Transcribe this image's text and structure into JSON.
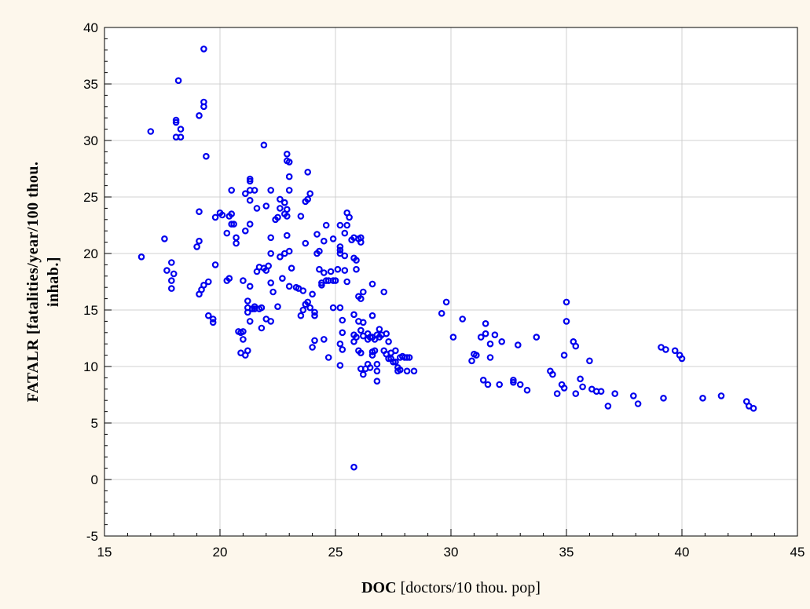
{
  "chart_data": {
    "type": "scatter",
    "title": "",
    "xlabel": {
      "bold": "DOC",
      "rest": " [doctors/10 thou. pop]"
    },
    "ylabel": {
      "line1": "FATALR [fatalities/year/100 thou.",
      "line2": "inhab.]"
    },
    "xlim": [
      15,
      45
    ],
    "ylim": [
      -5,
      40
    ],
    "xticks": [
      15,
      20,
      25,
      30,
      35,
      40,
      45
    ],
    "yticks": [
      -5,
      0,
      5,
      10,
      15,
      20,
      25,
      30,
      35,
      40
    ],
    "grid": true,
    "marker_color": "#0000ee",
    "points": [
      [
        16.6,
        19.7
      ],
      [
        17.0,
        30.8
      ],
      [
        17.6,
        21.3
      ],
      [
        17.7,
        18.5
      ],
      [
        17.9,
        19.2
      ],
      [
        17.9,
        17.6
      ],
      [
        17.9,
        16.9
      ],
      [
        18.0,
        18.2
      ],
      [
        18.1,
        30.3
      ],
      [
        18.1,
        31.6
      ],
      [
        18.1,
        31.8
      ],
      [
        18.2,
        35.3
      ],
      [
        18.3,
        30.3
      ],
      [
        18.3,
        31.0
      ],
      [
        19.1,
        32.2
      ],
      [
        19.3,
        33.0
      ],
      [
        19.3,
        33.4
      ],
      [
        19.3,
        38.1
      ],
      [
        19.4,
        28.6
      ],
      [
        19.0,
        20.6
      ],
      [
        19.1,
        16.4
      ],
      [
        19.2,
        16.8
      ],
      [
        19.1,
        21.1
      ],
      [
        19.1,
        23.7
      ],
      [
        19.3,
        17.2
      ],
      [
        19.5,
        17.5
      ],
      [
        19.5,
        14.5
      ],
      [
        19.7,
        14.2
      ],
      [
        19.7,
        13.9
      ],
      [
        19.8,
        19.0
      ],
      [
        19.8,
        23.2
      ],
      [
        20.0,
        23.6
      ],
      [
        20.1,
        23.4
      ],
      [
        20.3,
        21.8
      ],
      [
        20.3,
        17.6
      ],
      [
        20.4,
        17.8
      ],
      [
        20.4,
        23.3
      ],
      [
        20.5,
        22.6
      ],
      [
        20.5,
        23.5
      ],
      [
        20.5,
        25.6
      ],
      [
        20.6,
        22.6
      ],
      [
        20.7,
        21.4
      ],
      [
        20.7,
        20.9
      ],
      [
        20.8,
        13.1
      ],
      [
        20.9,
        11.2
      ],
      [
        20.9,
        13.0
      ],
      [
        21.0,
        17.6
      ],
      [
        21.0,
        12.4
      ],
      [
        21.0,
        13.1
      ],
      [
        21.1,
        11.0
      ],
      [
        21.1,
        25.3
      ],
      [
        21.1,
        22.0
      ],
      [
        21.2,
        11.4
      ],
      [
        21.2,
        15.8
      ],
      [
        21.2,
        15.2
      ],
      [
        21.2,
        14.8
      ],
      [
        21.3,
        26.4
      ],
      [
        21.3,
        26.6
      ],
      [
        21.3,
        25.6
      ],
      [
        21.3,
        24.7
      ],
      [
        21.3,
        22.6
      ],
      [
        21.3,
        14.0
      ],
      [
        21.3,
        17.1
      ],
      [
        21.4,
        15.1
      ],
      [
        21.5,
        25.6
      ],
      [
        21.5,
        15.3
      ],
      [
        21.5,
        15.1
      ],
      [
        21.6,
        24.0
      ],
      [
        21.6,
        18.4
      ],
      [
        21.7,
        18.8
      ],
      [
        21.7,
        15.1
      ],
      [
        21.8,
        13.4
      ],
      [
        21.8,
        15.2
      ],
      [
        21.9,
        29.6
      ],
      [
        21.9,
        18.7
      ],
      [
        22.0,
        24.2
      ],
      [
        22.0,
        18.5
      ],
      [
        22.0,
        14.2
      ],
      [
        22.1,
        18.9
      ],
      [
        22.2,
        25.6
      ],
      [
        22.2,
        21.4
      ],
      [
        22.2,
        20.0
      ],
      [
        22.2,
        14.0
      ],
      [
        22.2,
        17.4
      ],
      [
        22.3,
        16.6
      ],
      [
        22.4,
        23.0
      ],
      [
        22.5,
        23.2
      ],
      [
        22.5,
        15.3
      ],
      [
        22.6,
        24.0
      ],
      [
        22.6,
        24.8
      ],
      [
        22.6,
        19.7
      ],
      [
        22.7,
        17.8
      ],
      [
        22.8,
        24.5
      ],
      [
        22.8,
        23.5
      ],
      [
        22.8,
        20.0
      ],
      [
        22.9,
        23.9
      ],
      [
        22.9,
        28.8
      ],
      [
        22.9,
        28.2
      ],
      [
        22.9,
        23.3
      ],
      [
        22.9,
        21.6
      ],
      [
        23.0,
        28.1
      ],
      [
        23.0,
        26.8
      ],
      [
        23.0,
        25.6
      ],
      [
        23.0,
        20.2
      ],
      [
        23.0,
        17.1
      ],
      [
        23.1,
        18.7
      ],
      [
        23.3,
        17.0
      ],
      [
        23.4,
        16.9
      ],
      [
        23.5,
        14.5
      ],
      [
        23.5,
        23.3
      ],
      [
        23.6,
        16.7
      ],
      [
        23.6,
        15.0
      ],
      [
        23.7,
        15.5
      ],
      [
        23.7,
        20.9
      ],
      [
        23.7,
        24.6
      ],
      [
        23.8,
        27.2
      ],
      [
        23.8,
        24.8
      ],
      [
        23.8,
        15.7
      ],
      [
        23.9,
        25.3
      ],
      [
        23.9,
        15.2
      ],
      [
        24.0,
        16.4
      ],
      [
        24.0,
        11.7
      ],
      [
        24.1,
        14.8
      ],
      [
        24.1,
        14.5
      ],
      [
        24.1,
        12.3
      ],
      [
        24.2,
        20.0
      ],
      [
        24.2,
        21.7
      ],
      [
        24.3,
        20.2
      ],
      [
        24.3,
        18.6
      ],
      [
        24.4,
        17.2
      ],
      [
        24.4,
        17.4
      ],
      [
        24.5,
        12.4
      ],
      [
        24.5,
        18.3
      ],
      [
        24.5,
        21.1
      ],
      [
        24.6,
        17.6
      ],
      [
        24.6,
        22.5
      ],
      [
        24.7,
        17.6
      ],
      [
        24.7,
        10.8
      ],
      [
        24.8,
        18.4
      ],
      [
        24.9,
        15.2
      ],
      [
        24.9,
        21.3
      ],
      [
        24.9,
        17.6
      ],
      [
        25.0,
        17.6
      ],
      [
        25.1,
        18.6
      ],
      [
        25.2,
        22.5
      ],
      [
        25.2,
        20.3
      ],
      [
        25.2,
        20.0
      ],
      [
        25.2,
        20.6
      ],
      [
        25.2,
        15.2
      ],
      [
        25.2,
        12.0
      ],
      [
        25.2,
        10.1
      ],
      [
        25.3,
        11.5
      ],
      [
        25.3,
        14.1
      ],
      [
        25.3,
        13.0
      ],
      [
        25.4,
        21.8
      ],
      [
        25.4,
        19.8
      ],
      [
        25.4,
        18.5
      ],
      [
        25.5,
        22.5
      ],
      [
        25.5,
        23.6
      ],
      [
        25.5,
        17.5
      ],
      [
        25.6,
        23.2
      ],
      [
        25.7,
        21.2
      ],
      [
        25.8,
        21.4
      ],
      [
        25.8,
        19.6
      ],
      [
        25.8,
        14.6
      ],
      [
        25.8,
        12.2
      ],
      [
        25.8,
        12.8
      ],
      [
        25.8,
        1.1
      ],
      [
        25.9,
        19.4
      ],
      [
        25.9,
        18.6
      ],
      [
        25.9,
        12.6
      ],
      [
        26.0,
        14.0
      ],
      [
        26.0,
        11.4
      ],
      [
        26.0,
        16.2
      ],
      [
        26.0,
        21.3
      ],
      [
        26.1,
        21.4
      ],
      [
        26.1,
        21.0
      ],
      [
        26.1,
        16.0
      ],
      [
        26.1,
        13.2
      ],
      [
        26.1,
        11.2
      ],
      [
        26.1,
        9.8
      ],
      [
        26.2,
        16.6
      ],
      [
        26.2,
        13.9
      ],
      [
        26.2,
        12.7
      ],
      [
        26.2,
        9.3
      ],
      [
        26.3,
        9.8
      ],
      [
        26.4,
        12.4
      ],
      [
        26.4,
        12.9
      ],
      [
        26.4,
        10.2
      ],
      [
        26.5,
        12.6
      ],
      [
        26.5,
        9.9
      ],
      [
        26.6,
        12.6
      ],
      [
        26.6,
        11.3
      ],
      [
        26.6,
        11.0
      ],
      [
        26.6,
        14.5
      ],
      [
        26.6,
        17.3
      ],
      [
        26.7,
        11.4
      ],
      [
        26.7,
        12.4
      ],
      [
        26.8,
        12.8
      ],
      [
        26.8,
        10.2
      ],
      [
        26.8,
        9.6
      ],
      [
        26.8,
        8.7
      ],
      [
        26.9,
        12.6
      ],
      [
        26.9,
        13.3
      ],
      [
        27.0,
        12.8
      ],
      [
        27.1,
        16.6
      ],
      [
        27.1,
        11.4
      ],
      [
        27.2,
        12.9
      ],
      [
        27.2,
        11.1
      ],
      [
        27.3,
        12.2
      ],
      [
        27.3,
        10.7
      ],
      [
        27.4,
        11.2
      ],
      [
        27.4,
        10.7
      ],
      [
        27.5,
        10.4
      ],
      [
        27.6,
        11.4
      ],
      [
        27.6,
        10.4
      ],
      [
        27.7,
        9.9
      ],
      [
        27.7,
        9.6
      ],
      [
        27.8,
        10.8
      ],
      [
        27.8,
        9.7
      ],
      [
        27.9,
        10.9
      ],
      [
        28.0,
        10.8
      ],
      [
        28.1,
        10.8
      ],
      [
        28.1,
        9.6
      ],
      [
        28.2,
        10.8
      ],
      [
        28.4,
        9.6
      ],
      [
        29.6,
        14.7
      ],
      [
        29.8,
        15.7
      ],
      [
        30.1,
        12.6
      ],
      [
        30.5,
        14.2
      ],
      [
        30.9,
        10.5
      ],
      [
        31.0,
        11.1
      ],
      [
        31.1,
        11.0
      ],
      [
        31.3,
        12.6
      ],
      [
        31.4,
        8.8
      ],
      [
        31.5,
        13.8
      ],
      [
        31.5,
        12.9
      ],
      [
        31.6,
        8.4
      ],
      [
        31.7,
        10.8
      ],
      [
        31.7,
        12.0
      ],
      [
        31.9,
        12.8
      ],
      [
        32.1,
        8.4
      ],
      [
        32.2,
        12.2
      ],
      [
        32.7,
        8.8
      ],
      [
        32.7,
        8.6
      ],
      [
        32.9,
        11.9
      ],
      [
        33.0,
        8.4
      ],
      [
        33.3,
        7.9
      ],
      [
        33.7,
        12.6
      ],
      [
        34.3,
        9.6
      ],
      [
        34.4,
        9.3
      ],
      [
        34.6,
        7.6
      ],
      [
        34.8,
        8.4
      ],
      [
        34.9,
        11.0
      ],
      [
        34.9,
        8.1
      ],
      [
        35.0,
        15.7
      ],
      [
        35.0,
        14.0
      ],
      [
        35.3,
        12.2
      ],
      [
        35.4,
        11.8
      ],
      [
        35.4,
        7.6
      ],
      [
        35.6,
        8.9
      ],
      [
        35.7,
        8.2
      ],
      [
        36.0,
        10.5
      ],
      [
        36.1,
        8.0
      ],
      [
        36.3,
        7.8
      ],
      [
        36.5,
        7.8
      ],
      [
        36.8,
        6.5
      ],
      [
        37.1,
        7.6
      ],
      [
        37.9,
        7.4
      ],
      [
        38.1,
        6.7
      ],
      [
        39.1,
        11.7
      ],
      [
        39.2,
        7.2
      ],
      [
        39.3,
        11.5
      ],
      [
        39.7,
        11.4
      ],
      [
        39.9,
        11.0
      ],
      [
        40.0,
        10.7
      ],
      [
        40.9,
        7.2
      ],
      [
        41.7,
        7.4
      ],
      [
        42.8,
        6.9
      ],
      [
        42.9,
        6.5
      ],
      [
        43.1,
        6.3
      ]
    ]
  }
}
